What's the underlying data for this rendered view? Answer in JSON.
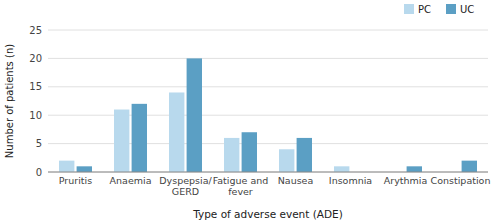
{
  "chart_data": {
    "type": "bar",
    "categories": [
      "Pruritis",
      "Anaemia",
      "Dyspepsia/\nGERD",
      "Fatigue and\nfever",
      "Nausea",
      "Insomnia",
      "Arythmia",
      "Constipation"
    ],
    "series": [
      {
        "name": "PC",
        "color": "#b8d9ed",
        "values": [
          2,
          11,
          14,
          6,
          4,
          1,
          0,
          0
        ]
      },
      {
        "name": "UC",
        "color": "#5b9fc4",
        "values": [
          1,
          12,
          20,
          7,
          6,
          0,
          1,
          2
        ]
      }
    ],
    "xlabel": "Type of adverse event (ADE)",
    "ylabel": "Number of patients (n)",
    "ylim": [
      0,
      25
    ],
    "yticks": [
      0,
      5,
      10,
      15,
      20,
      25
    ],
    "grid": true,
    "legend": "upper right"
  }
}
